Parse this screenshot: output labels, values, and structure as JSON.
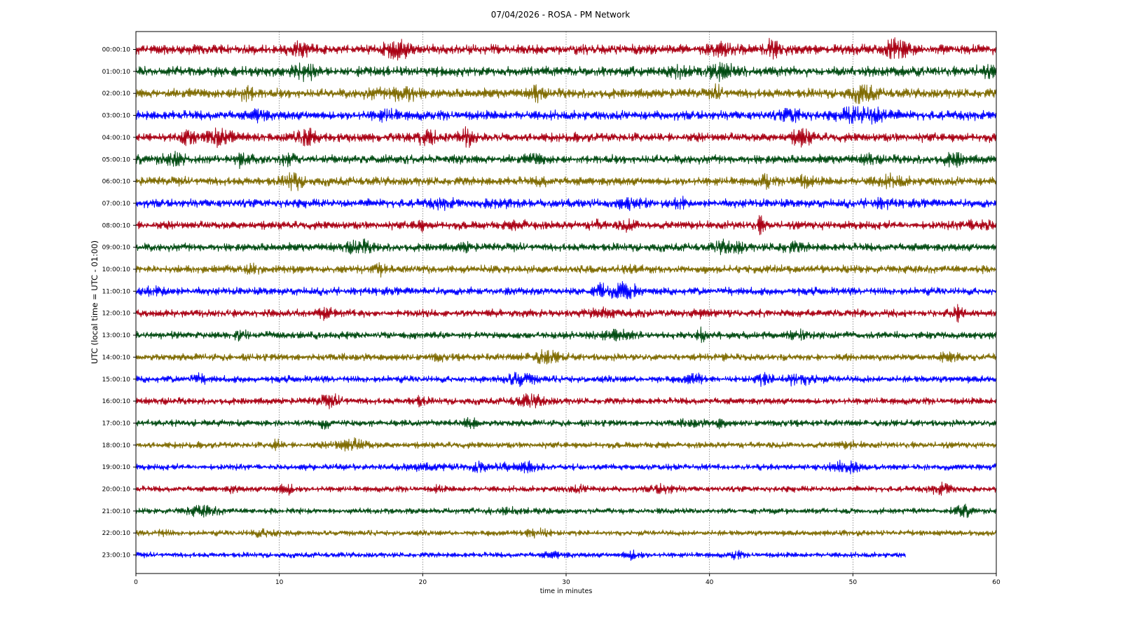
{
  "chart_data": {
    "type": "line",
    "title": "07/04/2026 - ROSA - PM Network",
    "xlabel": "time in minutes",
    "ylabel": "UTC (local time = UTC - 01:00)",
    "xlim": [
      0,
      60
    ],
    "x_ticks": [
      "0",
      "10",
      "20",
      "30",
      "40",
      "50",
      "60"
    ],
    "grid": "vertical dotted lines at x ticks",
    "row_colors": [
      "#aa0014",
      "#004b12",
      "#7f6b00",
      "#0000ff"
    ],
    "rows": [
      {
        "label": "00:00:10",
        "end_minute": 60
      },
      {
        "label": "01:00:10",
        "end_minute": 60
      },
      {
        "label": "02:00:10",
        "end_minute": 60
      },
      {
        "label": "03:00:10",
        "end_minute": 60
      },
      {
        "label": "04:00:10",
        "end_minute": 60
      },
      {
        "label": "05:00:10",
        "end_minute": 60
      },
      {
        "label": "06:00:10",
        "end_minute": 60
      },
      {
        "label": "07:00:10",
        "end_minute": 60
      },
      {
        "label": "08:00:10",
        "end_minute": 60
      },
      {
        "label": "09:00:10",
        "end_minute": 60
      },
      {
        "label": "10:00:10",
        "end_minute": 60
      },
      {
        "label": "11:00:10",
        "end_minute": 60
      },
      {
        "label": "12:00:10",
        "end_minute": 60
      },
      {
        "label": "13:00:10",
        "end_minute": 60
      },
      {
        "label": "14:00:10",
        "end_minute": 60
      },
      {
        "label": "15:00:10",
        "end_minute": 60
      },
      {
        "label": "16:00:10",
        "end_minute": 60
      },
      {
        "label": "17:00:10",
        "end_minute": 60
      },
      {
        "label": "18:00:10",
        "end_minute": 60
      },
      {
        "label": "19:00:10",
        "end_minute": 60
      },
      {
        "label": "20:00:10",
        "end_minute": 60
      },
      {
        "label": "21:00:10",
        "end_minute": 60
      },
      {
        "label": "22:00:10",
        "end_minute": 60
      },
      {
        "label": "23:00:10",
        "end_minute": 53.7
      }
    ]
  }
}
